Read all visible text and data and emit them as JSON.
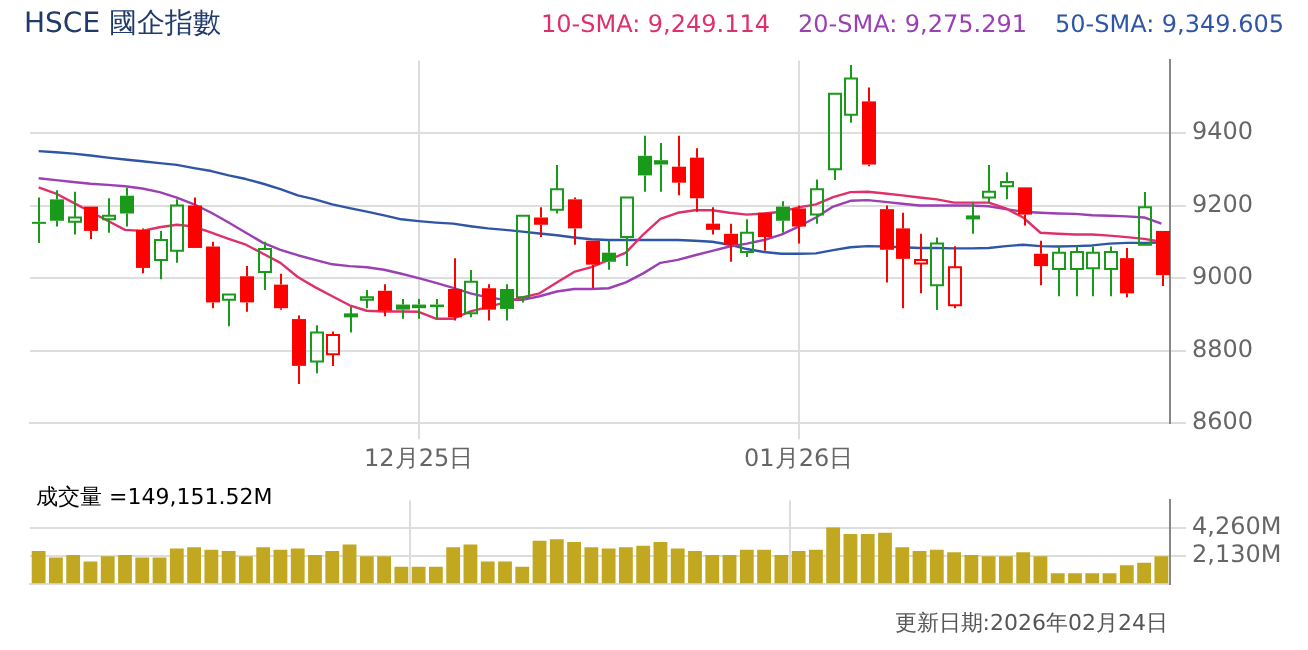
{
  "chart_data": [
    {
      "type": "candlestick",
      "title": "HSCE 國企指數",
      "categories": [
        null,
        null,
        null,
        null,
        null,
        null,
        null,
        null,
        null,
        null,
        null,
        null,
        null,
        null,
        null,
        null,
        null,
        null,
        null,
        null,
        null,
        null,
        "12月25日",
        null,
        null,
        null,
        null,
        null,
        null,
        null,
        null,
        null,
        null,
        null,
        null,
        null,
        null,
        null,
        null,
        null,
        null,
        null,
        null,
        null,
        "01月26日",
        null,
        null,
        null,
        null,
        null,
        null,
        null,
        null,
        null,
        null,
        null,
        null,
        null,
        null,
        null,
        null,
        null,
        null,
        null,
        null,
        null
      ],
      "ohlc": [
        [
          9155,
          9222,
          9097,
          9150
        ],
        [
          9217,
          9242,
          9142,
          9158
        ],
        [
          9155,
          9238,
          9120,
          9167
        ],
        [
          9197,
          9197,
          9108,
          9130
        ],
        [
          9162,
          9220,
          9125,
          9172
        ],
        [
          9227,
          9248,
          9142,
          9178
        ],
        [
          9133,
          9137,
          9013,
          9028
        ],
        [
          9050,
          9130,
          8997,
          9105
        ],
        [
          9075,
          9217,
          9042,
          9200
        ],
        [
          9200,
          9222,
          9083,
          9083
        ],
        [
          9087,
          9100,
          8917,
          8933
        ],
        [
          8940,
          8955,
          8867,
          8955
        ],
        [
          9005,
          9033,
          8907,
          8933
        ],
        [
          9017,
          9100,
          8967,
          9080
        ],
        [
          8982,
          9012,
          8913,
          8917
        ],
        [
          8887,
          8897,
          8708,
          8758
        ],
        [
          8770,
          8870,
          8738,
          8850
        ],
        [
          8790,
          8853,
          8758,
          8843
        ],
        [
          8895,
          8920,
          8850,
          8900
        ],
        [
          8940,
          8967,
          8917,
          8947
        ],
        [
          8965,
          8983,
          8895,
          8910
        ],
        [
          8927,
          8942,
          8888,
          8913
        ],
        [
          8927,
          8942,
          8888,
          8917
        ],
        [
          8927,
          8942,
          8888,
          8920
        ],
        [
          8970,
          9055,
          8883,
          8892
        ],
        [
          8903,
          9022,
          8892,
          8990
        ],
        [
          8972,
          8983,
          8883,
          8913
        ],
        [
          8970,
          8983,
          8883,
          8915
        ],
        [
          8947,
          9172,
          8933,
          9172
        ],
        [
          9167,
          9195,
          9113,
          9147
        ],
        [
          9188,
          9312,
          9178,
          9245
        ],
        [
          9217,
          9222,
          9092,
          9137
        ],
        [
          9103,
          9103,
          8972,
          9037
        ],
        [
          9070,
          9103,
          9023,
          9045
        ],
        [
          9113,
          9222,
          9033,
          9222
        ],
        [
          9337,
          9392,
          9238,
          9283
        ],
        [
          9325,
          9372,
          9238,
          9313
        ],
        [
          9307,
          9392,
          9228,
          9263
        ],
        [
          9332,
          9358,
          9183,
          9220
        ],
        [
          9150,
          9195,
          9120,
          9133
        ],
        [
          9122,
          9150,
          9045,
          9092
        ],
        [
          9072,
          9162,
          9058,
          9125
        ],
        [
          9180,
          9180,
          9075,
          9113
        ],
        [
          9197,
          9212,
          9125,
          9158
        ],
        [
          9192,
          9200,
          9095,
          9142
        ],
        [
          9175,
          9272,
          9150,
          9245
        ],
        [
          9300,
          9508,
          9270,
          9508
        ],
        [
          9450,
          9587,
          9428,
          9550
        ],
        [
          9487,
          9525,
          9308,
          9313
        ],
        [
          9190,
          9200,
          8988,
          9078
        ],
        [
          9137,
          9180,
          8917,
          9053
        ],
        [
          9040,
          9122,
          8958,
          9050
        ],
        [
          8980,
          9112,
          8912,
          9095
        ],
        [
          8925,
          9088,
          8917,
          9030
        ],
        [
          9167,
          9208,
          9122,
          9170
        ],
        [
          9222,
          9312,
          9208,
          9238
        ],
        [
          9253,
          9292,
          9217,
          9265
        ],
        [
          9250,
          9250,
          9145,
          9175
        ],
        [
          9067,
          9103,
          8980,
          9033
        ],
        [
          9025,
          9087,
          8950,
          9070
        ],
        [
          9025,
          9087,
          8950,
          9072
        ],
        [
          9027,
          9087,
          8950,
          9070
        ],
        [
          9025,
          9087,
          8950,
          9072
        ],
        [
          9055,
          9083,
          8947,
          8958
        ],
        [
          9092,
          9237,
          9092,
          9195
        ],
        [
          9130,
          9130,
          8978,
          9008
        ]
      ],
      "colors": [
        "#1a9a1a",
        "#1a9a1a",
        "#1a9a1a",
        "#ff0000",
        "#1a9a1a",
        "#1a9a1a",
        "#ff0000",
        "#1a9a1a",
        "#1a9a1a",
        "#ff0000",
        "#ff0000",
        "#1a9a1a",
        "#ff0000",
        "#1a9a1a",
        "#ff0000",
        "#ff0000",
        "#1a9a1a",
        "#ff0000",
        "#1a9a1a",
        "#1a9a1a",
        "#ff0000",
        "#1a9a1a",
        "#1a9a1a",
        "#1a9a1a",
        "#ff0000",
        "#1a9a1a",
        "#ff0000",
        "#1a9a1a",
        "#1a9a1a",
        "#ff0000",
        "#1a9a1a",
        "#ff0000",
        "#ff0000",
        "#1a9a1a",
        "#1a9a1a",
        "#1a9a1a",
        "#1a9a1a",
        "#ff0000",
        "#ff0000",
        "#ff0000",
        "#ff0000",
        "#1a9a1a",
        "#ff0000",
        "#1a9a1a",
        "#ff0000",
        "#1a9a1a",
        "#1a9a1a",
        "#1a9a1a",
        "#ff0000",
        "#ff0000",
        "#ff0000",
        "#ff0000",
        "#1a9a1a",
        "#ff0000",
        "#1a9a1a",
        "#1a9a1a",
        "#1a9a1a",
        "#ff0000",
        "#ff0000",
        "#1a9a1a",
        "#1a9a1a",
        "#1a9a1a",
        "#1a9a1a",
        "#ff0000",
        "#1a9a1a",
        "#ff0000"
      ],
      "series": [
        {
          "type": "line",
          "name": "10-SMA: 9,249.114",
          "color": "#e0306a",
          "values": [
            9250,
            9233,
            9208,
            9183,
            9158,
            9133,
            9130,
            9140,
            9147,
            9142,
            9125,
            9108,
            9092,
            9067,
            9042,
            9003,
            8975,
            8950,
            8925,
            8910,
            8908,
            8908,
            8907,
            8888,
            8888,
            8908,
            8920,
            8933,
            8947,
            8958,
            8988,
            9017,
            9030,
            9050,
            9070,
            9120,
            9163,
            9180,
            9187,
            9187,
            9180,
            9175,
            9178,
            9183,
            9195,
            9203,
            9223,
            9237,
            9238,
            9233,
            9228,
            9222,
            9217,
            9208,
            9208,
            9208,
            9192,
            9167,
            9125,
            9122,
            9120,
            9120,
            9117,
            9113,
            9108,
            9100
          ]
        },
        {
          "type": "line",
          "name": "20-SMA: 9,275.291",
          "color": "#9b3fb5",
          "values": [
            9275,
            9270,
            9265,
            9260,
            9257,
            9253,
            9247,
            9237,
            9222,
            9203,
            9180,
            9153,
            9125,
            9097,
            9078,
            9063,
            9050,
            9038,
            9033,
            9030,
            9023,
            9012,
            9000,
            8987,
            8973,
            8958,
            8947,
            8940,
            8940,
            8950,
            8963,
            8970,
            8970,
            8972,
            8988,
            9013,
            9042,
            9050,
            9063,
            9075,
            9087,
            9095,
            9105,
            9120,
            9142,
            9167,
            9197,
            9213,
            9215,
            9210,
            9205,
            9200,
            9200,
            9200,
            9200,
            9198,
            9190,
            9183,
            9180,
            9178,
            9177,
            9173,
            9172,
            9170,
            9167,
            9150
          ]
        },
        {
          "type": "line",
          "name": "50-SMA: 9,349.605",
          "color": "#2f56a6",
          "values": [
            9350,
            9347,
            9343,
            9338,
            9332,
            9327,
            9322,
            9317,
            9312,
            9303,
            9295,
            9283,
            9273,
            9260,
            9245,
            9228,
            9217,
            9203,
            9193,
            9183,
            9173,
            9162,
            9157,
            9153,
            9150,
            9143,
            9137,
            9133,
            9128,
            9123,
            9118,
            9112,
            9107,
            9105,
            9105,
            9105,
            9105,
            9105,
            9103,
            9100,
            9092,
            9080,
            9072,
            9067,
            9067,
            9068,
            9077,
            9085,
            9088,
            9087,
            9085,
            9083,
            9083,
            9082,
            9082,
            9083,
            9088,
            9092,
            9088,
            9087,
            9088,
            9090,
            9095,
            9097,
            9097,
            9098
          ]
        }
      ],
      "ylim": [
        8600,
        9600
      ],
      "yticks": [
        8600,
        8800,
        9000,
        9200,
        9400
      ],
      "grid": true,
      "legend": "top right",
      "marker": "none"
    },
    {
      "type": "bar",
      "categories": [
        null,
        null,
        null,
        null,
        null,
        null,
        null,
        null,
        null,
        null,
        null,
        null,
        null,
        null,
        null,
        null,
        null,
        null,
        null,
        null,
        null,
        null,
        null,
        null,
        null,
        null,
        null,
        null,
        null,
        null,
        null,
        null,
        null,
        null,
        null,
        null,
        null,
        null,
        null,
        null,
        null,
        null,
        null,
        null,
        null,
        null,
        null,
        null,
        null,
        null,
        null,
        null,
        null,
        null,
        null,
        null,
        null,
        null,
        null,
        null,
        null,
        null,
        null,
        null,
        null,
        null
      ],
      "values": [
        2500,
        2000,
        2200,
        1700,
        2100,
        2200,
        2000,
        2000,
        2700,
        2800,
        2600,
        2500,
        2100,
        2800,
        2600,
        2700,
        2200,
        2500,
        3000,
        2100,
        2100,
        1300,
        1300,
        1300,
        2800,
        3000,
        1700,
        1700,
        1300,
        3300,
        3400,
        3200,
        2800,
        2700,
        2800,
        2900,
        3200,
        2700,
        2500,
        2200,
        2200,
        2600,
        2600,
        2200,
        2500,
        2600,
        4300,
        3800,
        3800,
        3900,
        2800,
        2500,
        2600,
        2400,
        2200,
        2100,
        2100,
        2400,
        2100,
        800,
        800,
        800,
        800,
        1400,
        1600,
        2100
      ],
      "color": "#c2a820",
      "ylim": [
        0,
        6390
      ],
      "yticks": [
        {
          "value": 2130,
          "label": "2,130M"
        },
        {
          "value": 4260,
          "label": "4,260M"
        }
      ],
      "grid": true,
      "tick_labels": "y",
      "annotations": [
        "成交量 =149,151.52M",
        "更新日期:2026年02月24日"
      ]
    }
  ]
}
